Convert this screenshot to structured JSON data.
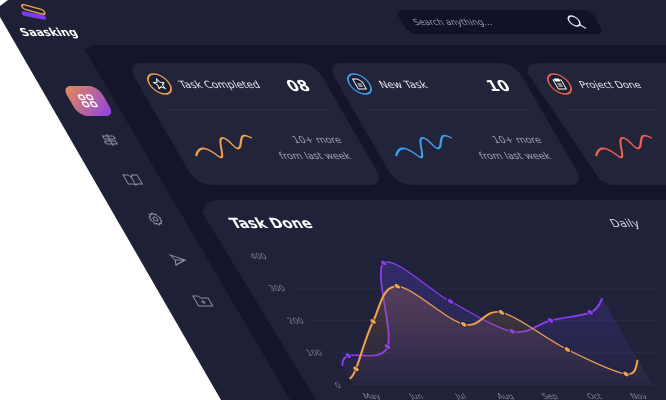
{
  "app": {
    "brand": "Saasking"
  },
  "colors": {
    "accent_orange": "#f0a050",
    "accent_purple": "#8a3cf0",
    "accent_blue": "#3aa0f0",
    "accent_red": "#f06050"
  },
  "sidebar": {
    "items": [
      {
        "icon": "grid-icon",
        "active": true
      },
      {
        "icon": "signpost-icon"
      },
      {
        "icon": "book-icon"
      },
      {
        "icon": "gear-icon"
      },
      {
        "icon": "send-icon"
      },
      {
        "icon": "folder-plus-icon"
      }
    ]
  },
  "search": {
    "placeholder": "Search anything..."
  },
  "cards": [
    {
      "title": "Task Completed",
      "value": "08",
      "sub1": "10+ more",
      "sub2": "from last week",
      "color": "#f0a050",
      "icon": "star-icon"
    },
    {
      "title": "New Task",
      "value": "10",
      "sub1": "10+ more",
      "sub2": "from last week",
      "color": "#3aa0f0",
      "icon": "document-icon"
    },
    {
      "title": "Project Done",
      "value": "",
      "sub1": "",
      "sub2": "",
      "color": "#f06050",
      "icon": "clipboard-icon"
    }
  ],
  "chart_panel": {
    "title": "Task Done",
    "period": "Daily"
  },
  "chart_data": {
    "type": "line",
    "categories": [
      "May",
      "Jun",
      "Jul",
      "Aug",
      "Sep",
      "Oct",
      "Nov"
    ],
    "yticks": [
      "400",
      "300",
      "200",
      "100",
      "0"
    ],
    "ylim": [
      0,
      400
    ],
    "grid": true,
    "series": [
      {
        "color": "#8a3cf0",
        "values": [
          91,
          119,
          378,
          259,
          166,
          200,
          225
        ]
      },
      {
        "color": "#f0a050",
        "values": [
          50,
          197,
          306,
          188,
          225,
          110,
          34
        ]
      }
    ]
  }
}
